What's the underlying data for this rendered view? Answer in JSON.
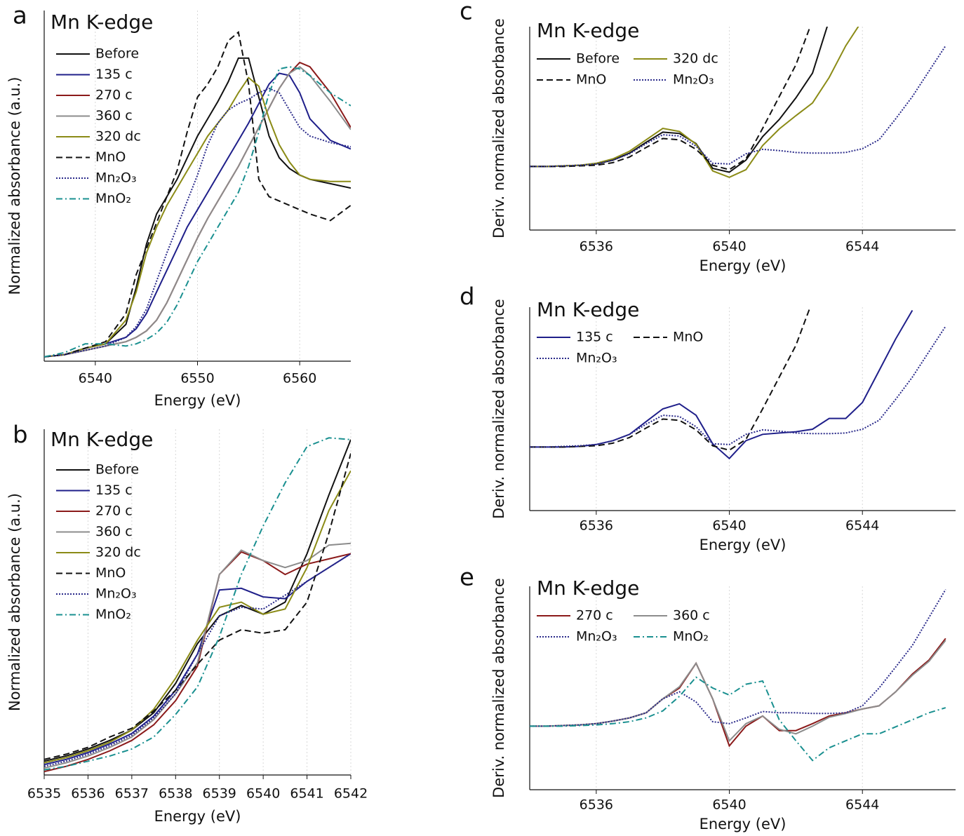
{
  "chart_data": [
    {
      "type": "line",
      "panel": "a",
      "title": "Mn K-edge",
      "xlabel": "Energy (eV)",
      "ylabel": "Normalized absorbance (a.u.)",
      "xlim": [
        6535,
        6565
      ],
      "xticks": [
        6540,
        6550,
        6560
      ],
      "ylim": [
        -0.02,
        1.6
      ],
      "grid": true,
      "legend_columns": 1,
      "x": [
        6535,
        6537,
        6539,
        6541,
        6543,
        6544,
        6545,
        6546,
        6547,
        6548,
        6549,
        6550,
        6551,
        6552,
        6553,
        6554,
        6555,
        6556,
        6557,
        6558,
        6559,
        6560,
        6561,
        6563,
        6565
      ],
      "series": [
        {
          "name": "Before",
          "color": "#111111",
          "dash": "solid",
          "values": [
            0,
            0.01,
            0.04,
            0.06,
            0.15,
            0.32,
            0.52,
            0.66,
            0.74,
            0.82,
            0.92,
            1.02,
            1.1,
            1.18,
            1.27,
            1.38,
            1.38,
            1.2,
            1.02,
            0.92,
            0.87,
            0.84,
            0.82,
            0.8,
            0.78
          ]
        },
        {
          "name": "135 c",
          "color": "#1f1f8a",
          "dash": "solid",
          "values": [
            0,
            0.01,
            0.04,
            0.06,
            0.09,
            0.13,
            0.2,
            0.3,
            0.4,
            0.5,
            0.6,
            0.68,
            0.76,
            0.84,
            0.92,
            1.0,
            1.08,
            1.17,
            1.26,
            1.31,
            1.3,
            1.22,
            1.1,
            1.0,
            0.96
          ]
        },
        {
          "name": "270 c",
          "color": "#8b1a1a",
          "dash": "solid",
          "values": [
            0,
            0.01,
            0.03,
            0.05,
            0.07,
            0.09,
            0.12,
            0.17,
            0.25,
            0.35,
            0.45,
            0.55,
            0.64,
            0.72,
            0.8,
            0.88,
            0.97,
            1.06,
            1.15,
            1.24,
            1.31,
            1.36,
            1.34,
            1.22,
            1.06
          ]
        },
        {
          "name": "360 c",
          "color": "#8c8c8c",
          "dash": "solid",
          "values": [
            0,
            0.01,
            0.03,
            0.05,
            0.07,
            0.09,
            0.12,
            0.17,
            0.25,
            0.35,
            0.45,
            0.55,
            0.64,
            0.72,
            0.8,
            0.88,
            0.97,
            1.06,
            1.15,
            1.24,
            1.31,
            1.34,
            1.3,
            1.18,
            1.05
          ]
        },
        {
          "name": "320 dc",
          "color": "#8b8b16",
          "dash": "solid",
          "values": [
            0,
            0.01,
            0.04,
            0.06,
            0.17,
            0.3,
            0.48,
            0.6,
            0.7,
            0.78,
            0.86,
            0.94,
            1.02,
            1.08,
            1.14,
            1.22,
            1.29,
            1.25,
            1.1,
            0.98,
            0.9,
            0.84,
            0.82,
            0.81,
            0.81
          ]
        },
        {
          "name": "MnO",
          "color": "#111111",
          "dash": "dashed",
          "values": [
            0,
            0.01,
            0.04,
            0.07,
            0.2,
            0.38,
            0.5,
            0.62,
            0.74,
            0.86,
            1.04,
            1.2,
            1.26,
            1.34,
            1.46,
            1.5,
            1.26,
            0.82,
            0.74,
            0.72,
            0.7,
            0.68,
            0.66,
            0.63,
            0.7
          ]
        },
        {
          "name": "Mn₂O₃",
          "color": "#2a2a8a",
          "dash": "dotted",
          "values": [
            0,
            0.01,
            0.03,
            0.05,
            0.09,
            0.14,
            0.22,
            0.35,
            0.48,
            0.6,
            0.72,
            0.84,
            0.98,
            1.08,
            1.14,
            1.17,
            1.19,
            1.22,
            1.24,
            1.22,
            1.14,
            1.06,
            1.02,
            0.99,
            0.97
          ]
        },
        {
          "name": "MnO₂",
          "color": "#1a9090",
          "dash": "dashdot",
          "values": [
            0,
            0.02,
            0.06,
            0.06,
            0.05,
            0.06,
            0.08,
            0.11,
            0.16,
            0.24,
            0.34,
            0.44,
            0.52,
            0.6,
            0.68,
            0.76,
            0.88,
            1.04,
            1.22,
            1.33,
            1.34,
            1.33,
            1.3,
            1.22,
            1.16
          ]
        }
      ]
    },
    {
      "type": "line",
      "panel": "b",
      "title": "Mn K-edge",
      "xlabel": "Energy (eV)",
      "ylabel": "Normalized absorbance (a.u.)",
      "xlim": [
        6535,
        6542
      ],
      "xticks": [
        6535,
        6536,
        6537,
        6538,
        6539,
        6540,
        6541,
        6542
      ],
      "ylim": [
        0,
        1.0
      ],
      "grid": true,
      "legend_columns": 1,
      "x": [
        6535,
        6535.5,
        6536,
        6536.5,
        6537,
        6537.5,
        6538,
        6538.5,
        6539,
        6539.5,
        6540,
        6540.5,
        6541,
        6541.5,
        6542
      ],
      "series": [
        {
          "name": "Before",
          "color": "#111111",
          "dash": "solid",
          "values": [
            0.04,
            0.055,
            0.075,
            0.1,
            0.13,
            0.18,
            0.265,
            0.38,
            0.46,
            0.49,
            0.465,
            0.5,
            0.64,
            0.81,
            0.97
          ]
        },
        {
          "name": "135 c",
          "color": "#1f1f8a",
          "dash": "solid",
          "values": [
            0.03,
            0.045,
            0.065,
            0.09,
            0.12,
            0.17,
            0.245,
            0.35,
            0.535,
            0.54,
            0.515,
            0.51,
            0.56,
            0.6,
            0.64
          ]
        },
        {
          "name": "270 c",
          "color": "#8b1a1a",
          "dash": "solid",
          "values": [
            0.01,
            0.025,
            0.045,
            0.07,
            0.1,
            0.145,
            0.215,
            0.315,
            0.58,
            0.645,
            0.62,
            0.58,
            0.61,
            0.625,
            0.64
          ]
        },
        {
          "name": "360 c",
          "color": "#8c8c8c",
          "dash": "solid",
          "values": [
            0.02,
            0.035,
            0.055,
            0.08,
            0.11,
            0.16,
            0.235,
            0.325,
            0.58,
            0.65,
            0.62,
            0.6,
            0.62,
            0.665,
            0.67
          ]
        },
        {
          "name": "320 dc",
          "color": "#8b8b16",
          "dash": "solid",
          "values": [
            0.035,
            0.05,
            0.07,
            0.095,
            0.13,
            0.19,
            0.28,
            0.39,
            0.485,
            0.5,
            0.465,
            0.48,
            0.6,
            0.765,
            0.88
          ]
        },
        {
          "name": "MnO",
          "color": "#111111",
          "dash": "dashed",
          "values": [
            0.045,
            0.06,
            0.08,
            0.11,
            0.135,
            0.185,
            0.245,
            0.32,
            0.39,
            0.42,
            0.41,
            0.42,
            0.5,
            0.7,
            0.93
          ]
        },
        {
          "name": "Mn₂O₃",
          "color": "#2a2a8a",
          "dash": "dotted",
          "values": [
            0.025,
            0.04,
            0.06,
            0.085,
            0.115,
            0.165,
            0.235,
            0.35,
            0.46,
            0.485,
            0.48,
            0.52,
            0.56,
            0.6,
            0.64
          ]
        },
        {
          "name": "MnO₂",
          "color": "#1a9090",
          "dash": "dashdot",
          "values": [
            0.015,
            0.025,
            0.04,
            0.055,
            0.075,
            0.11,
            0.175,
            0.255,
            0.4,
            0.58,
            0.72,
            0.845,
            0.95,
            0.975,
            0.97
          ]
        }
      ]
    },
    {
      "type": "line",
      "panel": "c",
      "title": "Mn K-edge",
      "xlabel": "Energy (eV)",
      "ylabel": "Deriv. normalized absorbance",
      "xlim": [
        6534,
        6546.8
      ],
      "xticks": [
        6536,
        6540,
        6544
      ],
      "ylim": [
        -1,
        2.2
      ],
      "grid": true,
      "legend_columns": 2,
      "x": [
        6534,
        6534.5,
        6535,
        6535.5,
        6536,
        6536.5,
        6537,
        6537.5,
        6538,
        6538.5,
        6539,
        6539.5,
        6540,
        6540.5,
        6541,
        6541.5,
        6542,
        6542.5,
        6543,
        6543.5,
        6544,
        6544.5,
        6545,
        6545.5,
        6546,
        6546.5
      ],
      "series": [
        {
          "name": "Before",
          "color": "#111111",
          "dash": "solid",
          "values": [
            0,
            0,
            0.01,
            0.02,
            0.04,
            0.1,
            0.21,
            0.38,
            0.54,
            0.52,
            0.36,
            -0.03,
            -0.09,
            0.1,
            0.47,
            0.74,
            1.08,
            1.47,
            2.3,
            null,
            null,
            null,
            null,
            null,
            null,
            null
          ]
        },
        {
          "name": "320 dc",
          "color": "#8b8b16",
          "dash": "solid",
          "values": [
            0,
            0,
            0.01,
            0.02,
            0.05,
            0.12,
            0.24,
            0.42,
            0.6,
            0.55,
            0.35,
            -0.07,
            -0.17,
            -0.05,
            0.33,
            0.59,
            0.8,
            1.0,
            1.4,
            1.9,
            2.3,
            null,
            null,
            null,
            null,
            null
          ]
        },
        {
          "name": "MnO",
          "color": "#111111",
          "dash": "dashed",
          "values": [
            0,
            0,
            0,
            0.01,
            0.02,
            0.06,
            0.15,
            0.3,
            0.44,
            0.42,
            0.27,
            0.02,
            -0.05,
            0.12,
            0.6,
            1.1,
            1.6,
            2.3,
            null,
            null,
            null,
            null,
            null,
            null,
            null,
            null
          ]
        },
        {
          "name": "Mn₂O₃",
          "color": "#2a2a8a",
          "dash": "dotted",
          "values": [
            0,
            0,
            0.01,
            0.02,
            0.04,
            0.1,
            0.2,
            0.36,
            0.5,
            0.48,
            0.32,
            0.05,
            0.04,
            0.2,
            0.27,
            0.25,
            0.22,
            0.21,
            0.21,
            0.22,
            0.28,
            0.42,
            0.75,
            1.1,
            1.5,
            1.9
          ]
        }
      ]
    },
    {
      "type": "line",
      "panel": "d",
      "title": "Mn K-edge",
      "xlabel": "Energy (eV)",
      "ylabel": "Deriv. normalized absorbance",
      "xlim": [
        6534,
        6546.8
      ],
      "xticks": [
        6536,
        6540,
        6544
      ],
      "ylim": [
        -1,
        2.2
      ],
      "grid": true,
      "legend_columns": 2,
      "x": [
        6534,
        6534.5,
        6535,
        6535.5,
        6536,
        6536.5,
        6537,
        6537.5,
        6538,
        6538.5,
        6539,
        6539.5,
        6540,
        6540.5,
        6541,
        6541.5,
        6542,
        6542.5,
        6543,
        6543.5,
        6544,
        6544.5,
        6545,
        6545.5,
        6546,
        6546.5
      ],
      "series": [
        {
          "name": "135 c",
          "color": "#1f1f8a",
          "dash": "solid",
          "values": [
            0,
            0,
            0,
            0.01,
            0.04,
            0.1,
            0.2,
            0.4,
            0.6,
            0.68,
            0.5,
            0.05,
            -0.18,
            0.1,
            0.2,
            0.22,
            0.24,
            0.28,
            0.45,
            0.45,
            0.7,
            1.2,
            1.7,
            2.15,
            null,
            null
          ]
        },
        {
          "name": "MnO",
          "color": "#111111",
          "dash": "dashed",
          "values": [
            0,
            0,
            0,
            0.01,
            0.02,
            0.06,
            0.15,
            0.3,
            0.44,
            0.42,
            0.27,
            0.02,
            -0.05,
            0.12,
            0.6,
            1.1,
            1.6,
            2.3,
            null,
            null,
            null,
            null,
            null,
            null,
            null,
            null
          ]
        },
        {
          "name": "Mn₂O₃",
          "color": "#2a2a8a",
          "dash": "dotted",
          "values": [
            0,
            0,
            0.01,
            0.02,
            0.04,
            0.1,
            0.2,
            0.36,
            0.5,
            0.48,
            0.32,
            0.05,
            0.04,
            0.2,
            0.27,
            0.25,
            0.22,
            0.21,
            0.21,
            0.22,
            0.28,
            0.42,
            0.75,
            1.1,
            1.5,
            1.9
          ]
        }
      ]
    },
    {
      "type": "line",
      "panel": "e",
      "title": "Mn K-edge",
      "xlabel": "Energy (eV)",
      "ylabel": "Deriv. normalized absorbance",
      "xlim": [
        6534,
        6546.8
      ],
      "xticks": [
        6536,
        6540,
        6544
      ],
      "ylim": [
        -1,
        2.2
      ],
      "grid": true,
      "legend_columns": 2,
      "x": [
        6534,
        6534.5,
        6535,
        6535.5,
        6536,
        6536.5,
        6537,
        6537.5,
        6538,
        6538.5,
        6539,
        6539.5,
        6540,
        6540.5,
        6541,
        6541.5,
        6542,
        6542.5,
        6543,
        6543.5,
        6544,
        6544.5,
        6545,
        6545.5,
        6546,
        6546.5
      ],
      "series": [
        {
          "name": "270 c",
          "color": "#8b1a1a",
          "dash": "solid",
          "values": [
            0,
            0,
            0.01,
            0.02,
            0.04,
            0.08,
            0.13,
            0.21,
            0.43,
            0.6,
            0.99,
            0.43,
            -0.31,
            0,
            0.16,
            -0.07,
            -0.07,
            0.04,
            0.16,
            0.21,
            0.27,
            0.32,
            0.54,
            0.82,
            1.04,
            1.38
          ]
        },
        {
          "name": "360 c",
          "color": "#8c8c8c",
          "dash": "solid",
          "values": [
            0,
            0,
            0.01,
            0.02,
            0.04,
            0.08,
            0.13,
            0.21,
            0.43,
            0.62,
            0.99,
            0.43,
            -0.23,
            0.04,
            0.16,
            -0.05,
            -0.12,
            0.0,
            0.14,
            0.2,
            0.27,
            0.32,
            0.54,
            0.8,
            1.02,
            1.35
          ]
        },
        {
          "name": "Mn₂O₃",
          "color": "#2a2a8a",
          "dash": "dotted",
          "values": [
            0,
            0,
            0.01,
            0.02,
            0.04,
            0.08,
            0.13,
            0.21,
            0.43,
            0.54,
            0.38,
            0.07,
            0.04,
            0.13,
            0.23,
            0.21,
            0.21,
            0.2,
            0.2,
            0.21,
            0.32,
            0.6,
            0.93,
            1.27,
            1.71,
            2.15
          ]
        },
        {
          "name": "MnO₂",
          "color": "#1a9090",
          "dash": "dashdot",
          "values": [
            0,
            0,
            0,
            0.01,
            0.02,
            0.04,
            0.07,
            0.13,
            0.24,
            0.47,
            0.77,
            0.6,
            0.49,
            0.66,
            0.71,
            0.1,
            -0.23,
            -0.54,
            -0.34,
            -0.23,
            -0.12,
            -0.12,
            -0.01,
            0.1,
            0.21,
            0.29
          ]
        }
      ]
    }
  ]
}
